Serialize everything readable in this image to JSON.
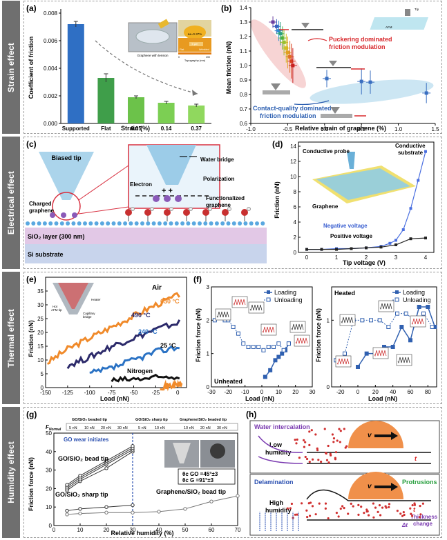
{
  "sections": [
    {
      "label": "Strain effect"
    },
    {
      "label": "Electrical effect"
    },
    {
      "label": "Thermal effect"
    },
    {
      "label": "Humidity effect"
    }
  ],
  "panels": {
    "a": {
      "label": "(a)",
      "xlabel": "Strain (%)",
      "ylabel": "Coefficient of friction",
      "legend_img": "Graphene with tension",
      "inset_label": "Δε=0.37%",
      "inset_scale": "5 μm",
      "topo_label": "Topography (nm)",
      "topo_min": "0",
      "topo_max": "200",
      "flat": "Flat",
      "wrinkled": "Wrinkled"
    },
    "b": {
      "label": "(b)",
      "xlabel": "Relative strain of graphene (%)",
      "ylabel": "Mean friction (nN)",
      "annot1": "Puckering dominated",
      "annot1b": "friction modulation",
      "annot2": "Contact-quality dominated",
      "annot2b": "friction modulation",
      "afm": "AFM",
      "tip": "Tip"
    },
    "c": {
      "label": "(c)",
      "biased_tip": "Biased tip",
      "water_bridge": "Water bridge",
      "electron": "Electron",
      "polarization": "Polarization",
      "charged1": "Charged",
      "charged2": "graphene",
      "func1": "Functionalized",
      "func2": "graphene",
      "sio2": "SiO₂ layer (300 nm)",
      "si": "Si substrate"
    },
    "d": {
      "label": "(d)",
      "xlabel": "Tip voltage (V)",
      "ylabel": "Friction (nN)",
      "probe": "Conductive probe",
      "substrate1": "Conductive",
      "substrate2": "substrate",
      "graphene": "Graphene",
      "neg": "Negative voltage",
      "pos": "Positive voltage"
    },
    "e": {
      "label": "(e)",
      "xlabel": "Load (nN)",
      "ylabel": "Friction (nN)",
      "air": "Air",
      "nitrogen": "Nitrogen",
      "t650": "650 °C",
      "t490": "490 °C",
      "t240": "240 °C",
      "t25": "25 °C",
      "heater": "Heater",
      "capillary1": "Capillary",
      "capillary2": "bridge",
      "hot1": "Hot",
      "hot2": "AFM tip"
    },
    "f": {
      "label": "(f)",
      "xlabel": "Load (nN)",
      "ylabel": "Friction force (nN)",
      "loading": "Loading",
      "unloading": "Unloading",
      "unheated": "Unheated",
      "heated": "Heated"
    },
    "g": {
      "label": "(g)",
      "xlabel": "Relative humidity (%)",
      "ylabel": "Friction force (nN)",
      "fnormal": "F",
      "fnormal_sub": "Normal",
      "h1": "GO/SiO₂ beaded tip",
      "h2": "GO/SiO₂ sharp tip",
      "h3": "Graphene/SiO₂ beaded tip",
      "l1": "5 nN",
      "l2": "10 nN",
      "l3": "20 nN",
      "l4": "30 nN",
      "m1": "5 nN",
      "m2": "10 nN",
      "n1": "10 nN",
      "n2": "20 nN",
      "n3": "30 nN",
      "wear": "GO wear initiates",
      "bead": "GO/SiO₂ bead tip",
      "sharp": "GO/SiO₂ sharp tip",
      "graphene": "Graphene/SiO₂ bead tip",
      "ca1": "θc GO =45°±3",
      "ca2": "θc G =91°±3"
    },
    "h": {
      "label": "(h)",
      "water": "Water intercalation",
      "low1": "Low",
      "low2": "humidity",
      "delam": "Delamination",
      "protrusions": "Protrusions",
      "high1": "High",
      "high2": "humidity",
      "thick1": "Thickness",
      "thick2": "change",
      "v": "v",
      "t": "t",
      "dt": "Δt"
    }
  },
  "chart_data": [
    {
      "id": "a",
      "type": "bar",
      "categories": [
        "Supported",
        "Flat",
        "0.05",
        "0.14",
        "0.37"
      ],
      "values": [
        0.0072,
        0.0033,
        0.0019,
        0.0015,
        0.0013
      ],
      "errors": [
        0.0002,
        0.0003,
        0.0001,
        0.0001,
        0.0001
      ],
      "colors": [
        "#2f6fc4",
        "#3f9e4a",
        "#6cc24a",
        "#7ccf53",
        "#90d85e"
      ],
      "ylim": [
        0,
        0.008
      ],
      "yticks": [
        "0.000",
        "0.002",
        "0.004",
        "0.006",
        "0.008"
      ]
    },
    {
      "id": "b",
      "type": "scatter",
      "xlim": [
        -1.0,
        1.5
      ],
      "ylim": [
        0.6,
        1.4
      ],
      "xticks": [
        "-1.0",
        "-0.5",
        "0.0",
        "0.5",
        "1.0",
        "1.5"
      ],
      "yticks": [
        "0.6",
        "0.7",
        "0.8",
        "0.9",
        "1.0",
        "1.1",
        "1.2",
        "1.3",
        "1.4"
      ],
      "points": [
        {
          "x": -0.7,
          "y": 1.3,
          "err": 0.04,
          "color": "#6a3fa0"
        },
        {
          "x": -0.65,
          "y": 1.27,
          "err": 0.05,
          "color": "#3a5fc0"
        },
        {
          "x": -0.62,
          "y": 1.24,
          "err": 0.07,
          "color": "#2a8ad0"
        },
        {
          "x": -0.6,
          "y": 1.22,
          "err": 0.08,
          "color": "#2aa080"
        },
        {
          "x": -0.57,
          "y": 1.19,
          "err": 0.08,
          "color": "#4ab040"
        },
        {
          "x": -0.55,
          "y": 1.16,
          "err": 0.09,
          "color": "#9ac030"
        },
        {
          "x": -0.52,
          "y": 1.12,
          "err": 0.1,
          "color": "#d0c020"
        },
        {
          "x": -0.5,
          "y": 1.09,
          "err": 0.11,
          "color": "#e0a020"
        },
        {
          "x": -0.47,
          "y": 1.06,
          "err": 0.11,
          "color": "#e07020"
        },
        {
          "x": -0.45,
          "y": 1.03,
          "err": 0.12,
          "color": "#d84020"
        },
        {
          "x": -0.43,
          "y": 1.0,
          "err": 0.12,
          "color": "#c82020"
        },
        {
          "x": 0.03,
          "y": 0.91,
          "err": 0.06,
          "color": "#3a6fc0"
        },
        {
          "x": 0.5,
          "y": 0.89,
          "err": 0.09,
          "color": "#3a6fc0"
        },
        {
          "x": 0.62,
          "y": 0.885,
          "err": 0.08,
          "color": "#3a6fc0"
        },
        {
          "x": 1.38,
          "y": 0.81,
          "err": 0.07,
          "color": "#3a6fc0"
        }
      ]
    },
    {
      "id": "d",
      "type": "line",
      "xlim": [
        0,
        4
      ],
      "ylim": [
        0,
        14
      ],
      "xticks": [
        "0",
        "1",
        "2",
        "3",
        "4"
      ],
      "yticks": [
        "0",
        "2",
        "4",
        "6",
        "8",
        "10",
        "12",
        "14"
      ],
      "series": [
        {
          "name": "Negative voltage",
          "color": "#4a6fe0",
          "x": [
            0,
            0.5,
            1,
            1.5,
            2,
            2.5,
            2.8,
            3,
            3.25,
            3.5,
            3.75,
            4
          ],
          "y": [
            0.4,
            0.4,
            0.5,
            0.5,
            0.6,
            0.8,
            1.2,
            1.6,
            3.0,
            5.8,
            9.5,
            13.3
          ]
        },
        {
          "name": "Positive voltage",
          "color": "#222222",
          "x": [
            0,
            0.5,
            1,
            1.5,
            2,
            2.5,
            3,
            3.5,
            4
          ],
          "y": [
            0.4,
            0.4,
            0.4,
            0.5,
            0.6,
            0.7,
            1.0,
            1.8,
            1.9
          ]
        }
      ]
    },
    {
      "id": "e",
      "type": "line",
      "xlim": [
        -150,
        10
      ],
      "ylim": [
        0,
        40
      ],
      "xticks": [
        "-150",
        "-125",
        "-100",
        "-75",
        "-50",
        "-25",
        "0"
      ],
      "yticks": [
        "0",
        "5",
        "10",
        "15",
        "20",
        "25",
        "30",
        "35"
      ],
      "series": [
        {
          "name": "650 °C",
          "color": "#f08a2a",
          "x": [
            -148,
            -125,
            -100,
            -75,
            -50,
            -25,
            5
          ],
          "y": [
            9,
            14,
            18,
            22,
            26,
            30,
            34
          ]
        },
        {
          "name": "490 °C",
          "color": "#2c2a6a",
          "x": [
            -125,
            -100,
            -75,
            -50,
            -25,
            5
          ],
          "y": [
            8,
            11,
            15,
            18,
            21,
            24
          ]
        },
        {
          "name": "240 °C",
          "color": "#2a72c4",
          "x": [
            -100,
            -75,
            -50,
            -25,
            5
          ],
          "y": [
            5,
            7,
            10,
            13,
            15
          ]
        },
        {
          "name": "25 °C",
          "color": "#111111",
          "x": [
            -75,
            -50,
            -25,
            5
          ],
          "y": [
            2.5,
            3,
            3.5,
            4
          ]
        },
        {
          "name": "Nitrogen",
          "color": "#f08a2a",
          "x": [
            -20,
            -10,
            0,
            5
          ],
          "y": [
            0.3,
            0.6,
            0.9,
            1.2
          ]
        }
      ]
    },
    {
      "id": "f1",
      "type": "line",
      "title": "Unheated",
      "xlim": [
        -30,
        30
      ],
      "ylim": [
        0,
        3
      ],
      "xticks": [
        "-30",
        "-20",
        "-10",
        "0",
        "10",
        "20",
        "30"
      ],
      "yticks": [
        "0",
        "1",
        "2",
        "3"
      ],
      "series": [
        {
          "name": "Loading",
          "color": "#3060b0",
          "x": [
            2,
            5,
            8,
            10,
            12,
            14,
            16
          ],
          "y": [
            0.3,
            0.5,
            0.8,
            0.9,
            1.0,
            1.1,
            1.3
          ]
        },
        {
          "name": "Unloading",
          "color": "#3060b0",
          "x": [
            -28,
            -25,
            -22,
            -20,
            -17,
            -14,
            -11,
            -8,
            -5,
            -2,
            1,
            4,
            7,
            10,
            13,
            16
          ],
          "y": [
            2.0,
            2.1,
            2.0,
            2.0,
            1.8,
            1.6,
            1.3,
            1.2,
            1.2,
            1.2,
            1.1,
            1.2,
            1.2,
            1.3,
            1.1,
            1.3
          ]
        }
      ]
    },
    {
      "id": "f2",
      "type": "line",
      "title": "Heated",
      "xlim": [
        -30,
        90
      ],
      "ylim": [
        0,
        1.5
      ],
      "xticks": [
        "-20",
        "0",
        "20",
        "40",
        "60",
        "80"
      ],
      "yticks": [
        "0",
        "1"
      ],
      "series": [
        {
          "name": "Loading",
          "color": "#3060b0",
          "x": [
            0,
            10,
            20,
            30,
            40,
            50,
            60,
            70,
            80,
            88
          ],
          "y": [
            0.3,
            0.5,
            0.5,
            0.6,
            0.6,
            0.9,
            0.7,
            1.2,
            1.2,
            0.9
          ]
        },
        {
          "name": "Unloading",
          "color": "#3060b0",
          "x": [
            -25,
            -15,
            -5,
            5,
            15,
            25,
            35,
            45,
            55,
            65,
            75,
            85
          ],
          "y": [
            0.4,
            0.5,
            1.0,
            1.0,
            1.0,
            1.0,
            0.9,
            1.1,
            1.1,
            1.0,
            1.1,
            0.9
          ]
        }
      ]
    },
    {
      "id": "g",
      "type": "line",
      "xlim": [
        0,
        70
      ],
      "ylim": [
        0,
        50
      ],
      "xticks": [
        "0",
        "10",
        "20",
        "30",
        "40",
        "50",
        "60",
        "70"
      ],
      "yticks": [
        "0",
        "10",
        "20",
        "30",
        "40",
        "50"
      ],
      "series": [
        {
          "name": "GO/SiO₂ bead tip 5 nN",
          "color": "#333333",
          "x": [
            5,
            10,
            20,
            30
          ],
          "y": [
            19,
            24,
            31,
            40
          ]
        },
        {
          "name": "GO/SiO₂ bead tip 10 nN",
          "color": "#333333",
          "x": [
            5,
            10,
            20,
            30
          ],
          "y": [
            20,
            25,
            33,
            41
          ]
        },
        {
          "name": "GO/SiO₂ bead tip 20 nN",
          "color": "#333333",
          "x": [
            5,
            10,
            20,
            30
          ],
          "y": [
            21,
            26,
            34,
            42
          ]
        },
        {
          "name": "GO/SiO₂ bead tip 30 nN",
          "color": "#333333",
          "x": [
            5,
            10,
            20,
            30
          ],
          "y": [
            22,
            27,
            35,
            43
          ]
        },
        {
          "name": "GO/SiO₂ sharp tip",
          "color": "#333333",
          "x": [
            5,
            10,
            20,
            30
          ],
          "y": [
            8,
            9,
            10,
            11
          ]
        },
        {
          "name": "Graphene/SiO₂ bead tip",
          "color": "#777777",
          "x": [
            5,
            10,
            20,
            30,
            40,
            50,
            60,
            70
          ],
          "y": [
            6,
            6.5,
            7,
            7,
            7.5,
            9,
            13,
            16
          ]
        }
      ]
    }
  ]
}
